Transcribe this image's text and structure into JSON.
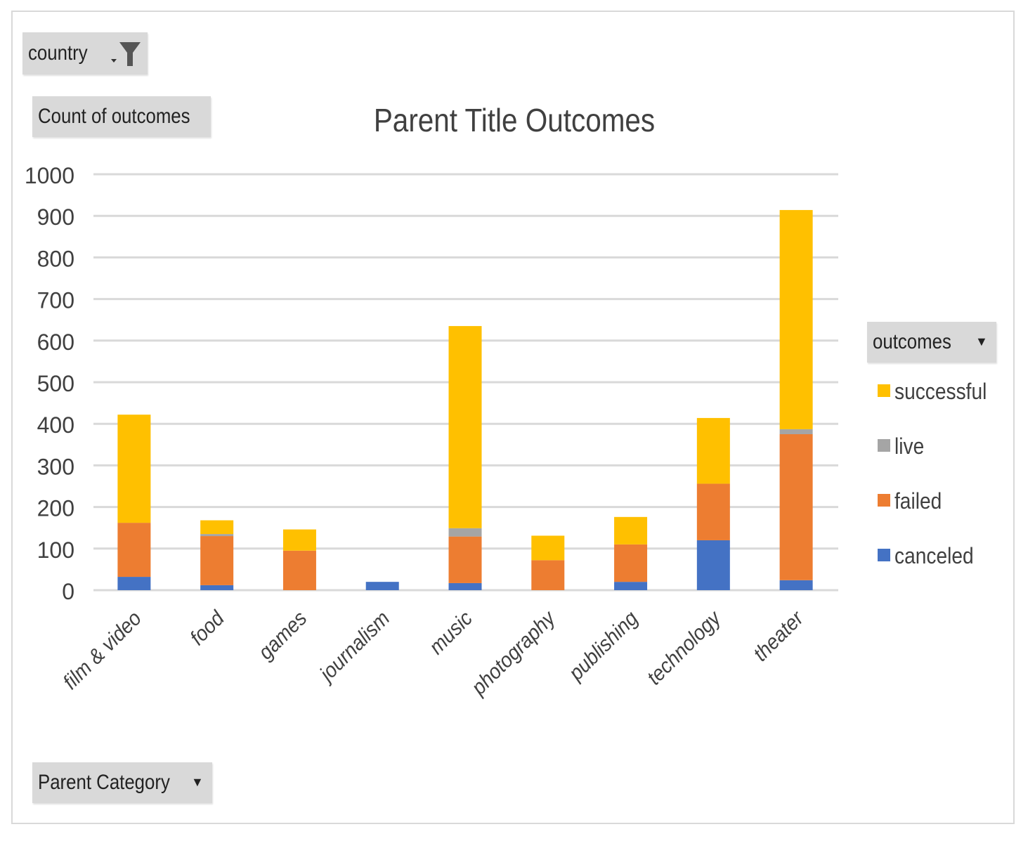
{
  "filters": {
    "report_filter": "country",
    "values_field": "Count of outcomes",
    "legend_field": "outcomes",
    "axis_field": "Parent Category"
  },
  "chart_data": {
    "type": "bar",
    "stacked": true,
    "title": "Parent Title Outcomes",
    "xlabel": "",
    "ylabel": "",
    "ylim": [
      0,
      1000
    ],
    "yticks": [
      0,
      100,
      200,
      300,
      400,
      500,
      600,
      700,
      800,
      900,
      1000
    ],
    "grid": true,
    "legend_position": "right",
    "categories": [
      "film & video",
      "food",
      "games",
      "journalism",
      "music",
      "photography",
      "publishing",
      "technology",
      "theater"
    ],
    "series": [
      {
        "name": "canceled",
        "color": "#4472c4",
        "values": [
          32,
          12,
          0,
          20,
          17,
          0,
          20,
          120,
          24
        ]
      },
      {
        "name": "failed",
        "color": "#ed7d31",
        "values": [
          130,
          118,
          95,
          0,
          112,
          72,
          90,
          136,
          351
        ]
      },
      {
        "name": "live",
        "color": "#a5a5a5",
        "values": [
          0,
          5,
          0,
          0,
          20,
          0,
          0,
          0,
          12
        ]
      },
      {
        "name": "successful",
        "color": "#ffc000",
        "values": [
          260,
          33,
          51,
          0,
          486,
          59,
          66,
          158,
          527
        ]
      }
    ],
    "legend_order": [
      "successful",
      "live",
      "failed",
      "canceled"
    ]
  }
}
